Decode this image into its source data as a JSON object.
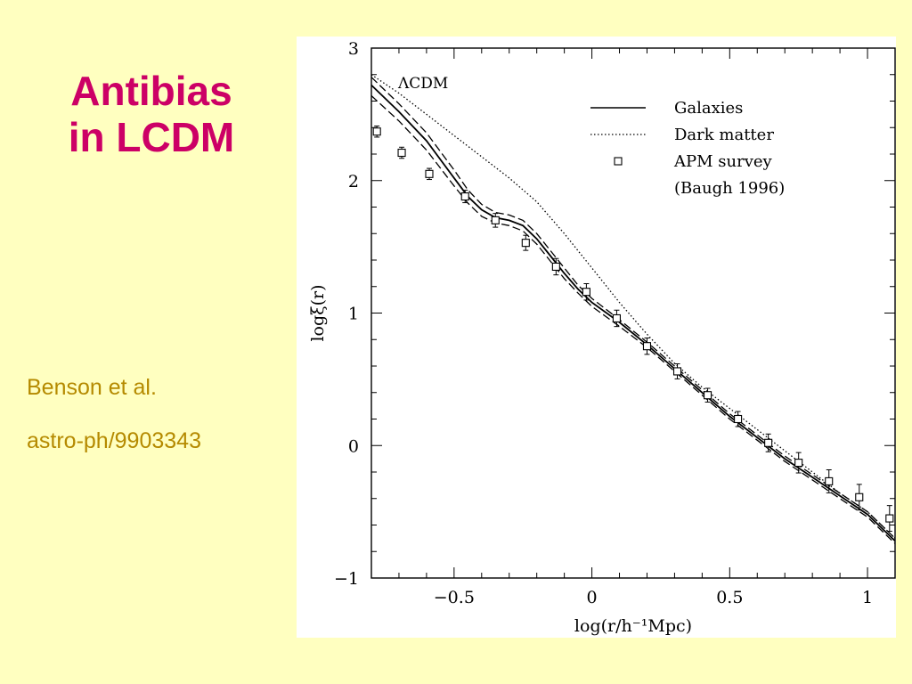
{
  "slide": {
    "title_lines": [
      "Antibias",
      "in LCDM"
    ],
    "credit": "Benson et al.",
    "reference": "astro-ph/9903343"
  },
  "colors": {
    "background": "#ffffc0",
    "title": "#cc0066",
    "credit": "#b58a00"
  },
  "chart_data": {
    "type": "line",
    "xlabel": "log(r/h⁻¹Mpc)",
    "ylabel": "logξ(r)",
    "annotation": "ΛCDM",
    "xlim": [
      -0.8,
      1.1
    ],
    "ylim": [
      -1,
      3
    ],
    "x_ticks": [
      -0.5,
      0,
      0.5,
      1
    ],
    "x_tick_labels": [
      "−0.5",
      "0",
      "0.5",
      "1"
    ],
    "y_ticks": [
      -1,
      0,
      1,
      2,
      3
    ],
    "y_tick_labels": [
      "−1",
      "0",
      "1",
      "2",
      "3"
    ],
    "grid": false,
    "legend_position": "top-right",
    "legend": [
      {
        "label": "Galaxies",
        "style": "solid"
      },
      {
        "label": "Dark matter",
        "style": "dotted"
      },
      {
        "label": "APM survey",
        "style": "square-marker"
      },
      {
        "label": "(Baugh 1996)",
        "style": "none"
      }
    ],
    "series": [
      {
        "name": "Galaxies",
        "style": "solid",
        "x": [
          -0.8,
          -0.7,
          -0.6,
          -0.5,
          -0.45,
          -0.4,
          -0.35,
          -0.3,
          -0.25,
          -0.2,
          -0.15,
          -0.1,
          -0.05,
          0,
          0.1,
          0.2,
          0.3,
          0.4,
          0.5,
          0.6,
          0.7,
          0.8,
          0.9,
          1.0,
          1.1
        ],
        "y": [
          2.72,
          2.52,
          2.3,
          2.02,
          1.88,
          1.78,
          1.72,
          1.7,
          1.66,
          1.56,
          1.43,
          1.3,
          1.18,
          1.08,
          0.93,
          0.76,
          0.58,
          0.4,
          0.22,
          0.06,
          -0.1,
          -0.24,
          -0.38,
          -0.52,
          -0.72
        ]
      },
      {
        "name": "Galaxies upper",
        "style": "dashed",
        "x": [
          -0.8,
          -0.7,
          -0.6,
          -0.5,
          -0.45,
          -0.4,
          -0.35,
          -0.3,
          -0.25,
          -0.2,
          -0.15,
          -0.1,
          -0.05,
          0,
          0.1,
          0.2,
          0.3,
          0.4,
          0.5,
          0.6,
          0.7,
          0.8,
          0.9,
          1.0,
          1.1
        ],
        "y": [
          2.78,
          2.58,
          2.36,
          2.08,
          1.93,
          1.82,
          1.76,
          1.74,
          1.7,
          1.6,
          1.47,
          1.34,
          1.21,
          1.11,
          0.95,
          0.78,
          0.6,
          0.42,
          0.24,
          0.08,
          -0.08,
          -0.22,
          -0.36,
          -0.5,
          -0.7
        ]
      },
      {
        "name": "Galaxies lower",
        "style": "dashed",
        "x": [
          -0.8,
          -0.7,
          -0.6,
          -0.5,
          -0.45,
          -0.4,
          -0.35,
          -0.3,
          -0.25,
          -0.2,
          -0.15,
          -0.1,
          -0.05,
          0,
          0.1,
          0.2,
          0.3,
          0.4,
          0.5,
          0.6,
          0.7,
          0.8,
          0.9,
          1.0,
          1.1
        ],
        "y": [
          2.64,
          2.45,
          2.23,
          1.96,
          1.83,
          1.73,
          1.68,
          1.66,
          1.62,
          1.52,
          1.39,
          1.26,
          1.15,
          1.05,
          0.9,
          0.74,
          0.56,
          0.38,
          0.2,
          0.04,
          -0.12,
          -0.26,
          -0.4,
          -0.54,
          -0.74
        ]
      },
      {
        "name": "Dark matter",
        "style": "dotted",
        "x": [
          -0.8,
          -0.7,
          -0.6,
          -0.5,
          -0.4,
          -0.3,
          -0.2,
          -0.1,
          0,
          0.1,
          0.2,
          0.3,
          0.4,
          0.5,
          0.6,
          0.7,
          0.8,
          0.9,
          1.0,
          1.1
        ],
        "y": [
          2.8,
          2.66,
          2.5,
          2.34,
          2.18,
          2.02,
          1.84,
          1.6,
          1.34,
          1.08,
          0.84,
          0.62,
          0.44,
          0.28,
          0.12,
          -0.04,
          -0.2,
          -0.36,
          -0.5,
          -0.7
        ]
      }
    ],
    "points": {
      "name": "APM survey",
      "x": [
        -0.78,
        -0.69,
        -0.59,
        -0.46,
        -0.35,
        -0.24,
        -0.13,
        -0.02,
        0.09,
        0.2,
        0.31,
        0.42,
        0.53,
        0.64,
        0.75,
        0.86,
        0.97,
        1.08
      ],
      "y": [
        2.37,
        2.21,
        2.05,
        1.88,
        1.7,
        1.53,
        1.35,
        1.16,
        0.96,
        0.75,
        0.56,
        0.38,
        0.2,
        0.02,
        -0.13,
        -0.27,
        -0.39,
        -0.55
      ],
      "err": [
        0.015,
        0.015,
        0.015,
        0.02,
        0.025,
        0.03,
        0.035,
        0.035,
        0.035,
        0.035,
        0.03,
        0.025,
        0.03,
        0.04,
        0.05,
        0.06,
        0.07,
        0.07
      ]
    }
  }
}
